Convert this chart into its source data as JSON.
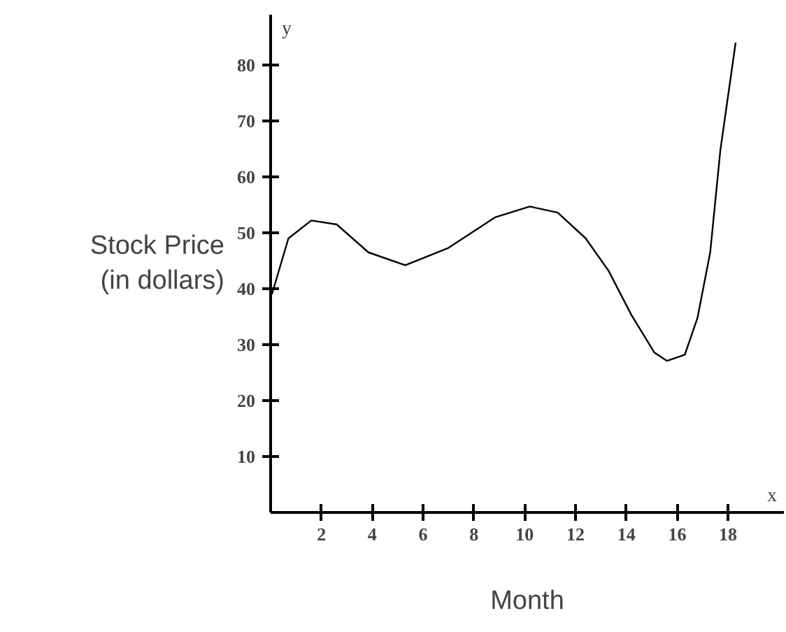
{
  "chart_data": {
    "type": "line",
    "xlabel": "Month",
    "ylabel": "Stock Price\n(in dollars)",
    "annotations": [
      "x",
      "y"
    ],
    "x": [
      0.05,
      0.7,
      1.6,
      2.6,
      3.85,
      5.3,
      7,
      8.85,
      10.2,
      11.3,
      12.4,
      13.3,
      14.2,
      15.1,
      15.6,
      16.3,
      16.8,
      17.3,
      17.7,
      18.3
    ],
    "series": [
      {
        "color": "#000000",
        "values": [
          39,
          49,
          52.2,
          51.5,
          46.5,
          44.2,
          47.3,
          52.8,
          54.7,
          53.6,
          49,
          43.2,
          35.3,
          28.6,
          27.1,
          28.2,
          34.8,
          46.5,
          64.8,
          84
        ]
      }
    ],
    "xlim": [
      0,
      20.2
    ],
    "ylim": [
      0,
      89
    ],
    "xticks": [
      2,
      4,
      6,
      8,
      10,
      12,
      14,
      16,
      18
    ],
    "yticks": [
      10,
      20,
      30,
      40,
      50,
      60,
      70,
      80
    ],
    "grid": false,
    "marker": "none",
    "line_style": "solid"
  }
}
